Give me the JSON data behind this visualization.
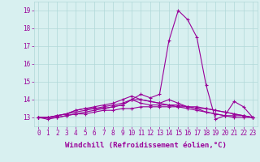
{
  "x_values": [
    0,
    1,
    2,
    3,
    4,
    5,
    6,
    7,
    8,
    9,
    10,
    11,
    12,
    13,
    14,
    15,
    16,
    17,
    18,
    19,
    20,
    21,
    22,
    23
  ],
  "series": [
    [
      13.0,
      13.0,
      13.0,
      13.1,
      13.2,
      13.2,
      13.3,
      13.4,
      13.4,
      13.5,
      13.5,
      13.6,
      13.6,
      13.6,
      13.6,
      13.6,
      13.6,
      13.5,
      13.5,
      13.4,
      13.3,
      13.2,
      13.1,
      13.0
    ],
    [
      13.0,
      13.0,
      13.1,
      13.2,
      13.3,
      13.4,
      13.5,
      13.5,
      13.6,
      13.7,
      14.0,
      13.8,
      13.7,
      13.7,
      13.7,
      13.7,
      13.6,
      13.6,
      13.5,
      13.4,
      13.3,
      13.2,
      13.1,
      13.0
    ],
    [
      13.0,
      13.0,
      13.1,
      13.2,
      13.4,
      13.5,
      13.5,
      13.6,
      13.7,
      13.8,
      14.0,
      14.0,
      13.9,
      13.8,
      13.7,
      13.6,
      13.5,
      13.4,
      13.3,
      13.2,
      13.1,
      13.1,
      13.1,
      13.0
    ],
    [
      13.0,
      13.0,
      13.1,
      13.2,
      13.4,
      13.5,
      13.6,
      13.7,
      13.8,
      14.0,
      14.2,
      14.0,
      13.9,
      13.8,
      14.0,
      13.8,
      13.6,
      13.5,
      13.3,
      13.2,
      13.1,
      13.0,
      13.0,
      13.0
    ],
    [
      13.0,
      12.9,
      13.0,
      13.1,
      13.2,
      13.3,
      13.4,
      13.5,
      13.6,
      13.7,
      14.0,
      14.3,
      14.1,
      14.3,
      17.3,
      19.0,
      18.5,
      17.5,
      14.8,
      12.9,
      13.1,
      13.9,
      13.6,
      13.0
    ]
  ],
  "line_color": "#990099",
  "marker": "+",
  "markersize": 3,
  "linewidth": 0.8,
  "bg_color": "#d8f0f0",
  "grid_color": "#b0d8d8",
  "xlabel": "Windchill (Refroidissement éolien,°C)",
  "xlabel_fontsize": 6.5,
  "tick_fontsize": 5.5,
  "ylim": [
    12.5,
    19.5
  ],
  "xlim": [
    -0.5,
    23.5
  ],
  "yticks": [
    13,
    14,
    15,
    16,
    17,
    18,
    19
  ],
  "xticks": [
    0,
    1,
    2,
    3,
    4,
    5,
    6,
    7,
    8,
    9,
    10,
    11,
    12,
    13,
    14,
    15,
    16,
    17,
    18,
    19,
    20,
    21,
    22,
    23
  ]
}
